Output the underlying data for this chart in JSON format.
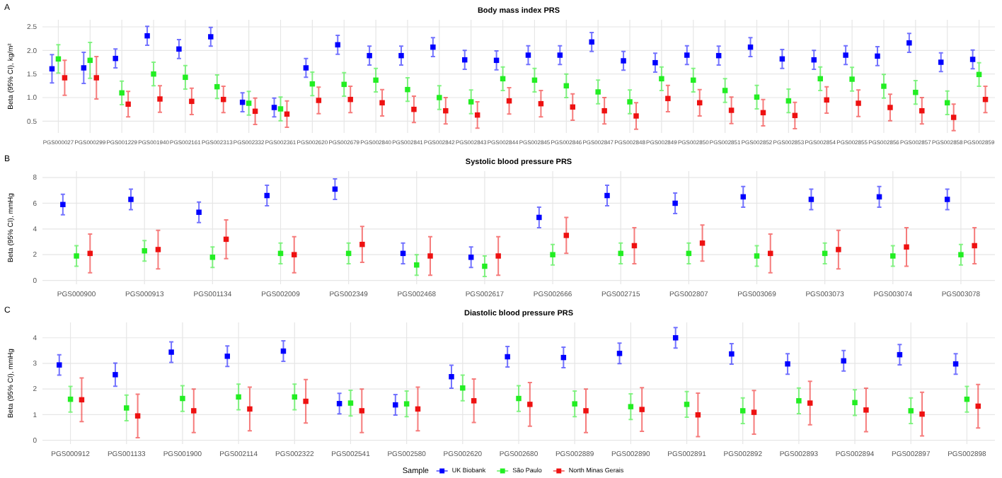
{
  "chart_data": [
    {
      "type": "scatter",
      "title": "Body mass index PRS",
      "annotations": [
        "A"
      ],
      "ylabel": "Beta (95% CI), kg/m²",
      "marker": "square",
      "grid": true,
      "legend": false,
      "categories": [
        "PGS000027",
        "PGS000299",
        "PGS001229",
        "PGS001940",
        "PGS002161",
        "PGS002313",
        "PGS002332",
        "PGS002361",
        "PGS002620",
        "PGS002679",
        "PGS002840",
        "PGS002841",
        "PGS002842",
        "PGS002843",
        "PGS002844",
        "PGS002845",
        "PGS002846",
        "PGS002847",
        "PGS002848",
        "PGS002849",
        "PGS002850",
        "PGS002851",
        "PGS002852",
        "PGS002853",
        "PGS002854",
        "PGS002855",
        "PGS002856",
        "PGS002857",
        "PGS002858",
        "PGS002859"
      ],
      "ylim": [
        0.25,
        2.65
      ],
      "yticks": [
        0.5,
        {
          "value": 1,
          "label": "1.0"
        },
        1.5,
        {
          "value": 2,
          "label": "2.0"
        },
        2.5
      ],
      "series": [
        {
          "color": "#0000ff",
          "values": [
            1.61,
            1.63,
            1.83,
            2.31,
            2.03,
            2.29,
            0.9,
            0.79,
            1.63,
            2.12,
            1.89,
            1.89,
            2.07,
            1.8,
            1.79,
            1.9,
            1.9,
            2.18,
            1.78,
            1.74,
            1.9,
            1.89,
            2.07,
            1.82,
            1.8,
            1.9,
            1.88,
            2.16,
            1.75,
            1.81
          ],
          "errors": [
            0.3,
            0.33,
            0.2,
            0.2,
            0.2,
            0.2,
            0.2,
            0.2,
            0.2,
            0.2,
            0.2,
            0.2,
            0.2,
            0.2,
            0.2,
            0.2,
            0.2,
            0.2,
            0.2,
            0.2,
            0.2,
            0.2,
            0.2,
            0.2,
            0.2,
            0.2,
            0.2,
            0.2,
            0.2,
            0.2
          ]
        },
        {
          "color": "#22ee22",
          "values": [
            1.82,
            1.79,
            1.1,
            1.5,
            1.43,
            1.23,
            0.88,
            0.76,
            1.29,
            1.28,
            1.37,
            1.17,
            1,
            0.91,
            1.4,
            1.37,
            1.25,
            1.12,
            0.91,
            1.4,
            1.37,
            1.15,
            1.01,
            0.93,
            1.4,
            1.39,
            1.24,
            1.11,
            0.89,
            1.49
          ],
          "errors": [
            0.3,
            0.38,
            0.25,
            0.25,
            0.25,
            0.25,
            0.25,
            0.25,
            0.25,
            0.25,
            0.25,
            0.25,
            0.25,
            0.25,
            0.25,
            0.25,
            0.25,
            0.25,
            0.25,
            0.25,
            0.25,
            0.25,
            0.25,
            0.25,
            0.25,
            0.25,
            0.25,
            0.25,
            0.25,
            0.25
          ]
        },
        {
          "color": "#ee1111",
          "values": [
            1.42,
            1.42,
            0.86,
            0.97,
            0.92,
            0.96,
            0.71,
            0.65,
            0.94,
            0.96,
            0.89,
            0.75,
            0.72,
            0.63,
            0.93,
            0.87,
            0.8,
            0.72,
            0.61,
            0.98,
            0.89,
            0.73,
            0.68,
            0.62,
            0.95,
            0.88,
            0.79,
            0.72,
            0.58,
            0.96
          ],
          "errors": [
            0.37,
            0.45,
            0.27,
            0.28,
            0.28,
            0.28,
            0.28,
            0.28,
            0.28,
            0.28,
            0.28,
            0.28,
            0.28,
            0.28,
            0.28,
            0.28,
            0.28,
            0.28,
            0.28,
            0.28,
            0.28,
            0.28,
            0.28,
            0.28,
            0.28,
            0.28,
            0.28,
            0.28,
            0.28,
            0.28
          ]
        }
      ]
    },
    {
      "type": "scatter",
      "title": "Systolic blood pressure PRS",
      "annotations": [
        "B"
      ],
      "ylabel": "Beta (95% CI), mmHg",
      "marker": "square",
      "grid": true,
      "legend": false,
      "categories": [
        "PGS000900",
        "PGS000913",
        "PGS001134",
        "PGS002009",
        "PGS002349",
        "PGS002468",
        "PGS002617",
        "PGS002666",
        "PGS002715",
        "PGS002807",
        "PGS003069",
        "PGS003073",
        "PGS003074",
        "PGS003078"
      ],
      "ylim": [
        -0.3,
        8.5
      ],
      "yticks": [
        0,
        2,
        4,
        6,
        8
      ],
      "series": [
        {
          "color": "#0000ff",
          "values": [
            5.9,
            6.3,
            5.3,
            6.6,
            7.1,
            2.1,
            1.8,
            4.9,
            6.6,
            6,
            6.5,
            6.3,
            6.5,
            6.3
          ],
          "errors": [
            0.8,
            0.8,
            0.8,
            0.8,
            0.8,
            0.8,
            0.8,
            0.8,
            0.8,
            0.8,
            0.8,
            0.8,
            0.8,
            0.8
          ]
        },
        {
          "color": "#22ee22",
          "values": [
            1.9,
            2.3,
            1.8,
            2.1,
            2.1,
            1.2,
            1.1,
            2,
            2.1,
            2.1,
            1.9,
            2.1,
            1.9,
            2
          ],
          "errors": [
            0.8,
            0.8,
            0.8,
            0.8,
            0.8,
            0.8,
            0.8,
            0.8,
            0.8,
            0.8,
            0.8,
            0.8,
            0.8,
            0.8
          ]
        },
        {
          "color": "#ee1111",
          "values": [
            2.1,
            2.4,
            3.2,
            2,
            2.8,
            1.9,
            1.9,
            3.5,
            2.7,
            2.9,
            2.1,
            2.4,
            2.6,
            2.7
          ],
          "errors": [
            1.5,
            1.5,
            1.5,
            1.4,
            1.4,
            1.5,
            1.5,
            1.4,
            1.4,
            1.4,
            1.5,
            1.5,
            1.5,
            1.4
          ]
        }
      ]
    },
    {
      "type": "scatter",
      "title": "Diastolic blood pressure PRS",
      "annotations": [
        "C"
      ],
      "ylabel": "Beta (95% CI), mmHg",
      "marker": "square",
      "grid": true,
      "legend": "bottom",
      "legend_title": "Sample",
      "categories": [
        "PGS000912",
        "PGS001133",
        "PGS001900",
        "PGS002114",
        "PGS002322",
        "PGS002541",
        "PGS002580",
        "PGS002620",
        "PGS002680",
        "PGS002889",
        "PGS002890",
        "PGS002891",
        "PGS002892",
        "PGS002893",
        "PGS002894",
        "PGS002897",
        "PGS002898"
      ],
      "ylim": [
        -0.15,
        4.6
      ],
      "yticks": [
        0,
        1,
        2,
        3,
        4
      ],
      "series": [
        {
          "name": "UK Biobank",
          "color": "#0000ff",
          "values": [
            2.94,
            2.56,
            3.44,
            3.28,
            3.48,
            1.43,
            1.38,
            2.48,
            3.26,
            3.23,
            3.39,
            4,
            3.37,
            2.98,
            3.1,
            3.34,
            2.98
          ],
          "errors": [
            0.4,
            0.45,
            0.4,
            0.4,
            0.4,
            0.4,
            0.4,
            0.45,
            0.4,
            0.4,
            0.4,
            0.4,
            0.4,
            0.4,
            0.4,
            0.4,
            0.4
          ]
        },
        {
          "name": "São Paulo",
          "color": "#22ee22",
          "values": [
            1.6,
            1.26,
            1.63,
            1.69,
            1.69,
            1.45,
            1.42,
            2.04,
            1.63,
            1.42,
            1.31,
            1.4,
            1.15,
            1.54,
            1.47,
            1.15,
            1.6
          ],
          "errors": [
            0.5,
            0.5,
            0.5,
            0.5,
            0.5,
            0.5,
            0.5,
            0.5,
            0.5,
            0.5,
            0.5,
            0.5,
            0.5,
            0.5,
            0.5,
            0.5,
            0.5
          ]
        },
        {
          "name": "North Minas Gerais",
          "color": "#ee1111",
          "values": [
            1.58,
            0.95,
            1.15,
            1.22,
            1.52,
            1.15,
            1.22,
            1.54,
            1.4,
            1.15,
            1.2,
            0.99,
            1.09,
            1.45,
            1.18,
            1.02,
            1.33
          ],
          "errors": [
            0.85,
            0.85,
            0.85,
            0.85,
            0.85,
            0.85,
            0.85,
            0.85,
            0.85,
            0.85,
            0.85,
            0.85,
            0.85,
            0.85,
            0.85,
            0.85,
            0.85
          ]
        }
      ]
    }
  ]
}
